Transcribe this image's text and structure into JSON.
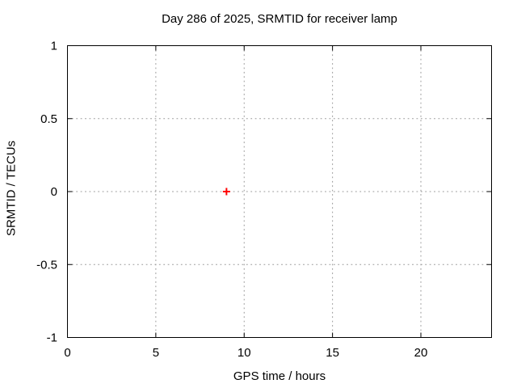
{
  "chart_data": {
    "type": "scatter",
    "title": "Day 286 of 2025, SRMTID for receiver lamp",
    "xlabel": "GPS time / hours",
    "ylabel": "SRMTID / TECUs",
    "xlim": [
      0,
      24
    ],
    "ylim": [
      -1,
      1
    ],
    "xticks": [
      0,
      5,
      10,
      15,
      20
    ],
    "xtick_labels": [
      "0",
      "5",
      "10",
      "15",
      "20"
    ],
    "yticks": [
      -1,
      -0.5,
      0,
      0.5,
      1
    ],
    "ytick_labels": [
      "-1",
      "-0.5",
      "0",
      "0.5",
      "1"
    ],
    "grid": true,
    "legend": "none",
    "series": [
      {
        "name": "SRMTID",
        "marker": "plus",
        "color": "#ff0000",
        "points": [
          {
            "x": 9,
            "y": 0
          }
        ]
      }
    ],
    "colors": {
      "border": "#000000",
      "grid": "#999999",
      "text": "#000000",
      "background": "#ffffff"
    }
  }
}
